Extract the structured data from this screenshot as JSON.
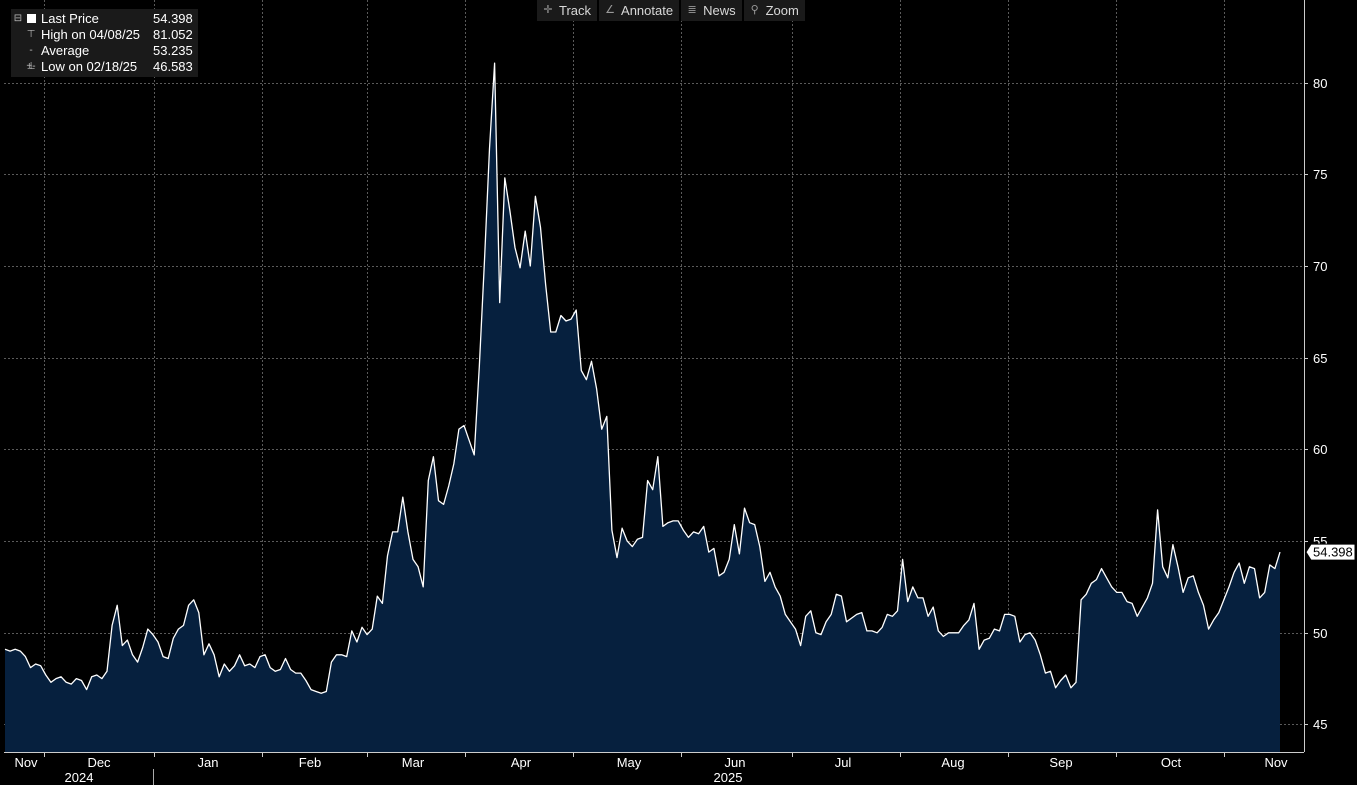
{
  "toolbar": {
    "items": [
      {
        "label": "Track",
        "icon": "crosshair-icon"
      },
      {
        "label": "Annotate",
        "icon": "pencil-icon"
      },
      {
        "label": "News",
        "icon": "list-icon"
      },
      {
        "label": "Zoom",
        "icon": "magnifier-icon"
      }
    ]
  },
  "legend": {
    "rows": [
      {
        "label": "Last Price",
        "value": "54.398",
        "icon": "square-marker-icon"
      },
      {
        "label": "High on 04/08/25",
        "value": "81.052",
        "icon": "high-marker-icon"
      },
      {
        "label": "Average",
        "value": "53.235",
        "icon": "average-marker-icon"
      },
      {
        "label": "Low on 02/18/25",
        "value": "46.583",
        "icon": "low-marker-icon"
      }
    ]
  },
  "chart_data": {
    "type": "area",
    "title": "",
    "xlabel": "",
    "ylabel": "",
    "ylim": [
      43.5,
      84.5
    ],
    "y_ticks": [
      45,
      50,
      55,
      60,
      65,
      70,
      75,
      80
    ],
    "y_axis_position": "right",
    "grid": true,
    "x_month_labels": [
      "Nov",
      "Dec",
      "Jan",
      "Feb",
      "Mar",
      "Apr",
      "May",
      "Jun",
      "Jul",
      "Aug",
      "Sep",
      "Oct",
      "Nov"
    ],
    "x_year_labels": [
      "2024",
      "2025"
    ],
    "last_value_label": "54.398",
    "colors": {
      "background": "#000000",
      "fill": "#06203e",
      "line": "#ffffff",
      "grid": "#5a5a5a",
      "text": "#ffffff"
    },
    "series": [
      {
        "values": [
          49.1,
          49.0,
          49.1,
          49.0,
          48.7,
          48.1,
          48.3,
          48.2,
          47.7,
          47.3,
          47.5,
          47.6,
          47.3,
          47.2,
          47.5,
          47.4,
          46.9,
          47.6,
          47.7,
          47.5,
          47.9,
          50.4,
          51.5,
          49.3,
          49.6,
          48.8,
          48.4,
          49.2,
          50.2,
          49.9,
          49.5,
          48.7,
          48.6,
          49.7,
          50.2,
          50.4,
          51.5,
          51.8,
          51.1,
          48.8,
          49.4,
          48.8,
          47.6,
          48.3,
          47.9,
          48.2,
          48.8,
          48.2,
          48.3,
          48.1,
          48.7,
          48.8,
          48.1,
          47.9,
          48.0,
          48.6,
          48.0,
          47.8,
          47.8,
          47.4,
          46.9,
          46.8,
          46.7,
          46.8,
          48.4,
          48.8,
          48.8,
          48.7,
          50.1,
          49.5,
          50.3,
          49.9,
          50.2,
          52.0,
          51.6,
          54.2,
          55.5,
          55.5,
          57.4,
          55.5,
          54.0,
          53.6,
          52.5,
          58.3,
          59.6,
          57.2,
          57.0,
          58.0,
          59.2,
          61.1,
          61.3,
          60.5,
          59.7,
          64.5,
          70.2,
          76.4,
          81.052,
          68.0,
          74.8,
          73.0,
          71.0,
          69.9,
          71.9,
          70.0,
          73.8,
          72.1,
          69.0,
          66.4,
          66.4,
          67.3,
          67.0,
          67.1,
          67.6,
          64.3,
          63.8,
          64.8,
          63.3,
          61.1,
          61.8,
          55.6,
          54.1,
          55.7,
          55.0,
          54.7,
          55.1,
          55.2,
          58.3,
          57.8,
          59.6,
          55.8,
          56.0,
          56.1,
          56.1,
          55.6,
          55.2,
          55.5,
          55.4,
          55.8,
          54.4,
          54.6,
          53.1,
          53.3,
          54.0,
          55.9,
          54.3,
          56.8,
          56.0,
          55.9,
          54.7,
          52.8,
          53.3,
          52.5,
          52.0,
          51.0,
          50.6,
          50.2,
          49.3,
          50.9,
          51.2,
          50.0,
          49.9,
          50.6,
          51.0,
          52.1,
          52.0,
          50.6,
          50.8,
          51.0,
          51.1,
          50.1,
          50.1,
          50.0,
          50.3,
          51.0,
          50.9,
          51.2,
          54.0,
          51.7,
          52.5,
          51.9,
          51.9,
          50.9,
          51.4,
          50.1,
          49.8,
          50.0,
          50.0,
          50.0,
          50.4,
          50.7,
          51.6,
          49.1,
          49.6,
          49.7,
          50.2,
          50.1,
          51.0,
          51.0,
          50.9,
          49.5,
          49.9,
          50.0,
          49.6,
          48.8,
          47.8,
          47.9,
          47.0,
          47.4,
          47.7,
          47.0,
          47.3,
          51.8,
          52.1,
          52.7,
          52.9,
          53.5,
          53.0,
          52.5,
          52.2,
          52.2,
          51.7,
          51.6,
          50.9,
          51.4,
          51.9,
          52.7,
          56.7,
          53.6,
          53.0,
          54.8,
          53.6,
          52.2,
          53.0,
          53.1,
          52.2,
          51.5,
          50.2,
          50.7,
          51.1,
          51.8,
          52.5,
          53.3,
          53.8,
          52.7,
          53.6,
          53.5,
          51.9,
          52.2,
          53.7,
          53.5,
          54.398
        ]
      }
    ]
  }
}
